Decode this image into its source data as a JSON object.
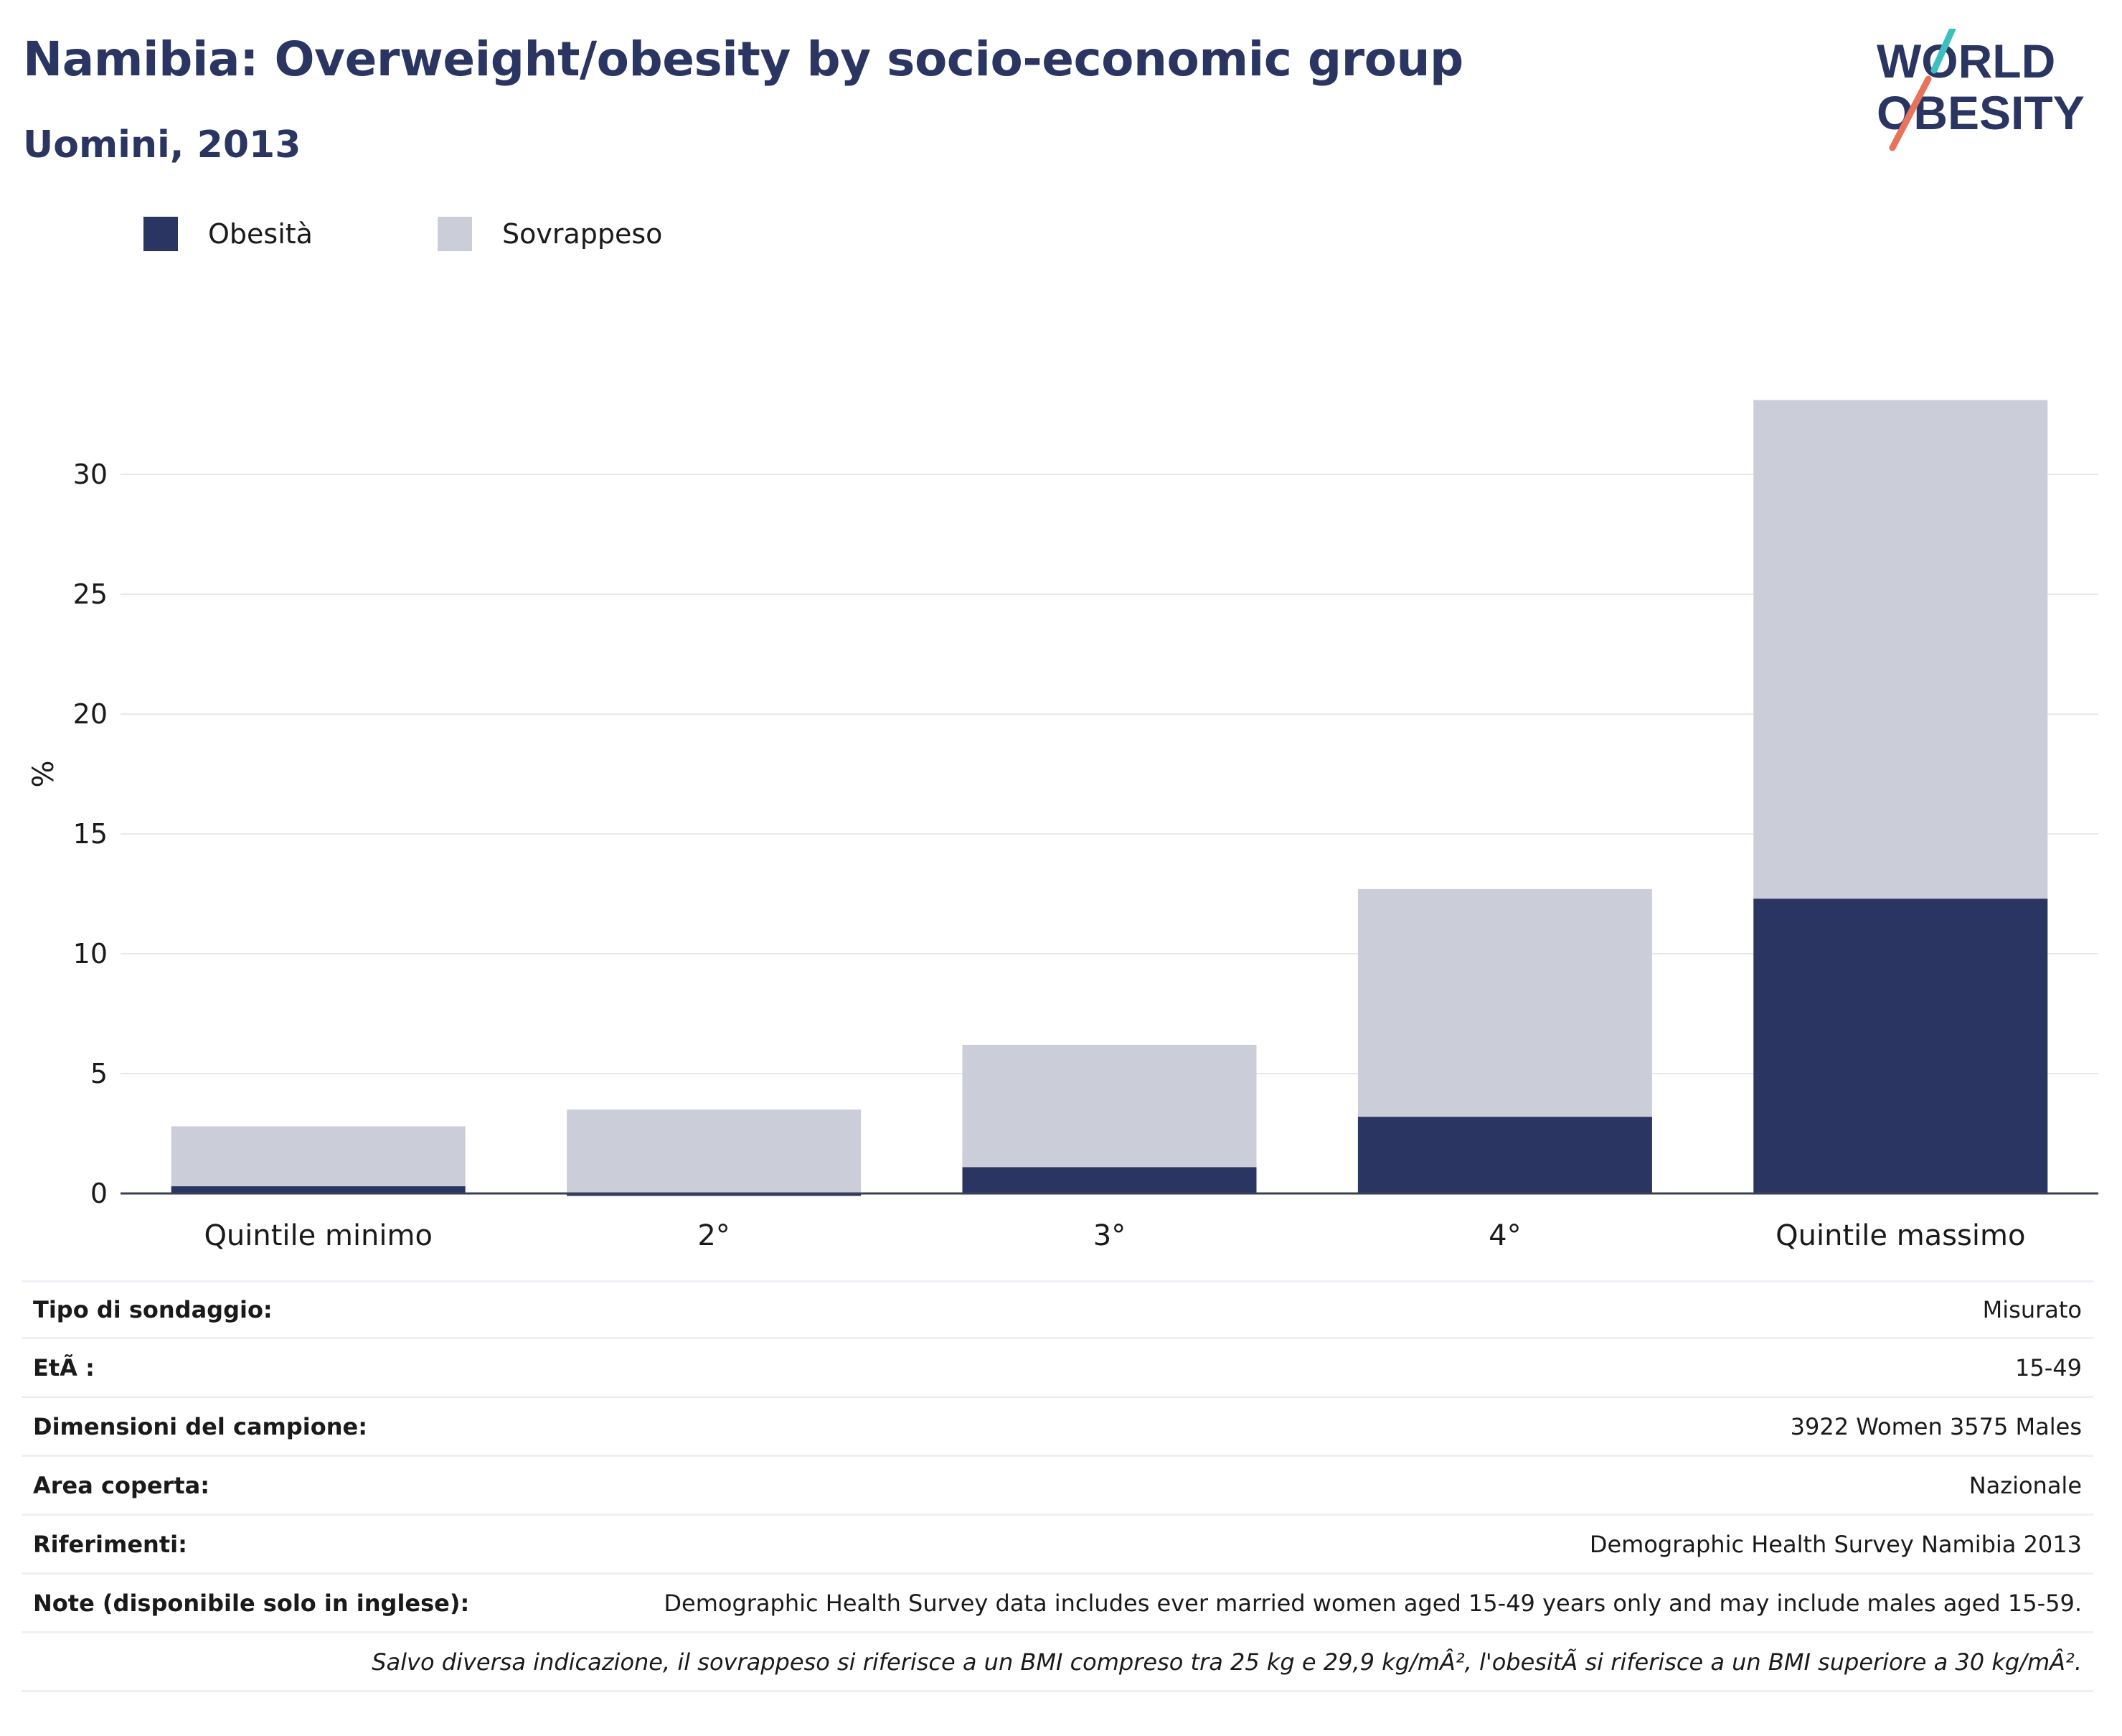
{
  "header": {
    "title": "Namibia: Overweight/obesity by socio-economic group",
    "subtitle": "Uomini, 2013"
  },
  "logo": {
    "line1": "WORLD",
    "line2": "OBESITY"
  },
  "colors": {
    "obesity": "#2a3561",
    "overweight": "#cbcdd8",
    "title": "#2a3561",
    "accent_teal": "#3bbfbf",
    "accent_coral": "#e8735c"
  },
  "chart_data": {
    "type": "bar",
    "stacked": true,
    "categories": [
      "Quintile minimo",
      "2°",
      "3°",
      "4°",
      "Quintile massimo"
    ],
    "series": [
      {
        "name": "Obesità",
        "values": [
          0.3,
          -0.1,
          1.1,
          3.2,
          12.3
        ]
      },
      {
        "name": "Sovrappeso",
        "values": [
          2.5,
          3.5,
          5.1,
          9.5,
          20.8
        ]
      }
    ],
    "ylabel": "%",
    "yticks": [
      0,
      5,
      10,
      15,
      20,
      25,
      30
    ],
    "ylim": [
      -0.2,
      35
    ],
    "grid": true,
    "legend_position": "top-left"
  },
  "info": {
    "rows": [
      {
        "label": "Tipo di sondaggio:",
        "value": "Misurato"
      },
      {
        "label": "EtÃ :",
        "value": "15-49"
      },
      {
        "label": "Dimensioni del campione:",
        "value": "3922 Women 3575 Males"
      },
      {
        "label": "Area coperta:",
        "value": "Nazionale"
      },
      {
        "label": "Riferimenti:",
        "value": "Demographic Health Survey Namibia 2013"
      },
      {
        "label": "Note (disponibile solo in inglese):",
        "value": "Demographic Health Survey data includes ever married women aged 15-49 years only and may include males aged 15-59."
      }
    ],
    "footnote": "Salvo diversa indicazione, il sovrappeso si riferisce a un BMI compreso tra 25 kg e 29,9 kg/mÂ², l'obesitÃ  si riferisce a un BMI superiore a 30 kg/mÂ²."
  }
}
